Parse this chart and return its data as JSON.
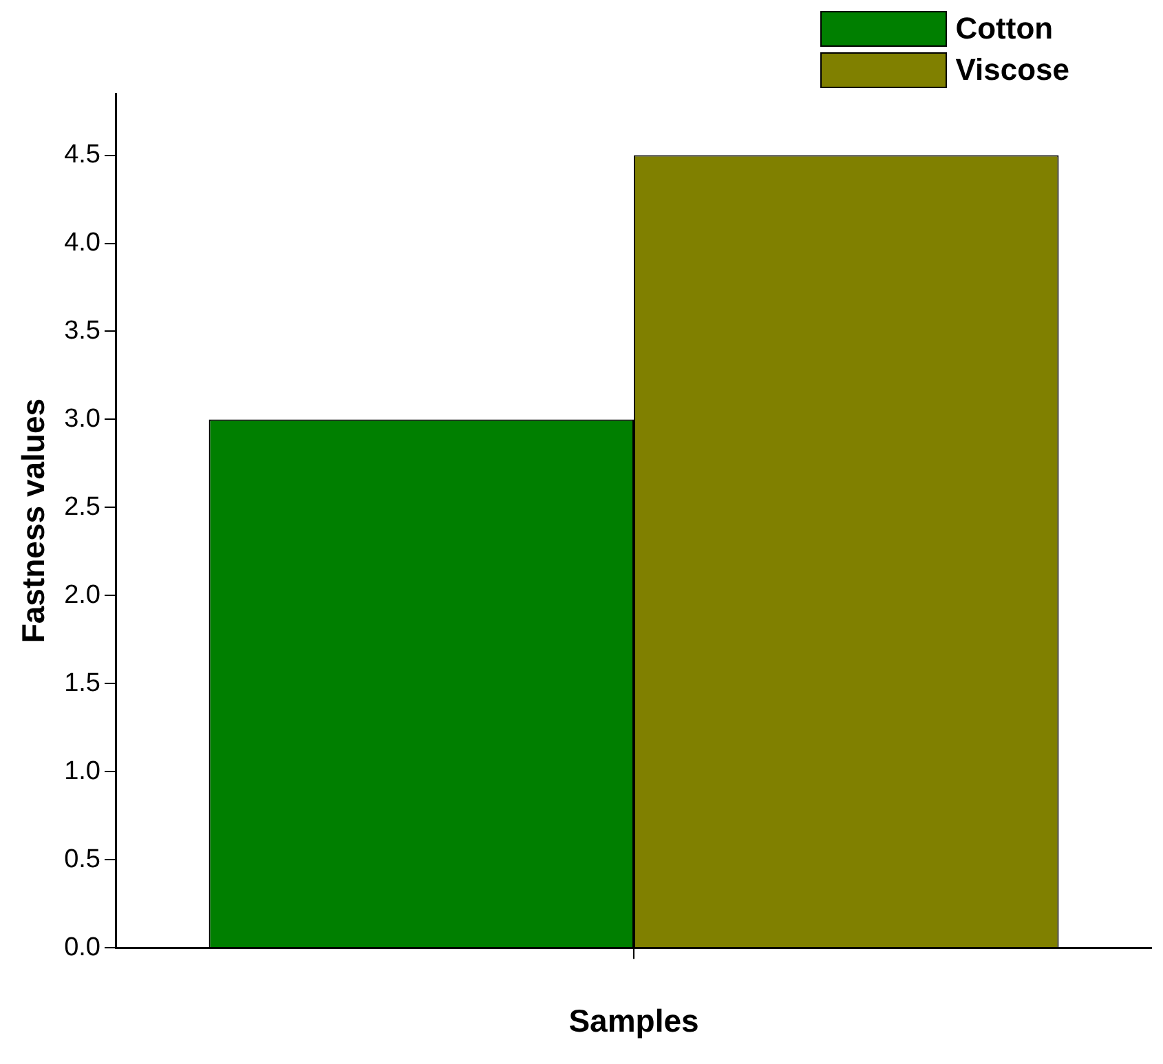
{
  "chart_data": {
    "type": "bar",
    "xlabel": "Samples",
    "ylabel": "Fastness values",
    "categories": [
      null
    ],
    "series": [
      {
        "name": "Cotton",
        "color": "#007f00",
        "values": [
          3.0
        ]
      },
      {
        "name": "Viscose",
        "color": "#808000",
        "values": [
          4.5
        ]
      }
    ],
    "ylim": [
      0,
      4.85
    ],
    "yticks": [
      {
        "value": 0,
        "label": "0.0"
      },
      {
        "value": 0.5,
        "label": "0.5"
      },
      {
        "value": 1,
        "label": "1.0"
      },
      {
        "value": 1.5,
        "label": "1.5"
      },
      {
        "value": 2,
        "label": "2.0"
      },
      {
        "value": 2.5,
        "label": "2.5"
      },
      {
        "value": 3,
        "label": "3.0"
      },
      {
        "value": 3.5,
        "label": "3.5"
      },
      {
        "value": 4,
        "label": "4.0"
      },
      {
        "value": 4.5,
        "label": "4.5"
      }
    ],
    "grid": false,
    "legend": "top right"
  }
}
